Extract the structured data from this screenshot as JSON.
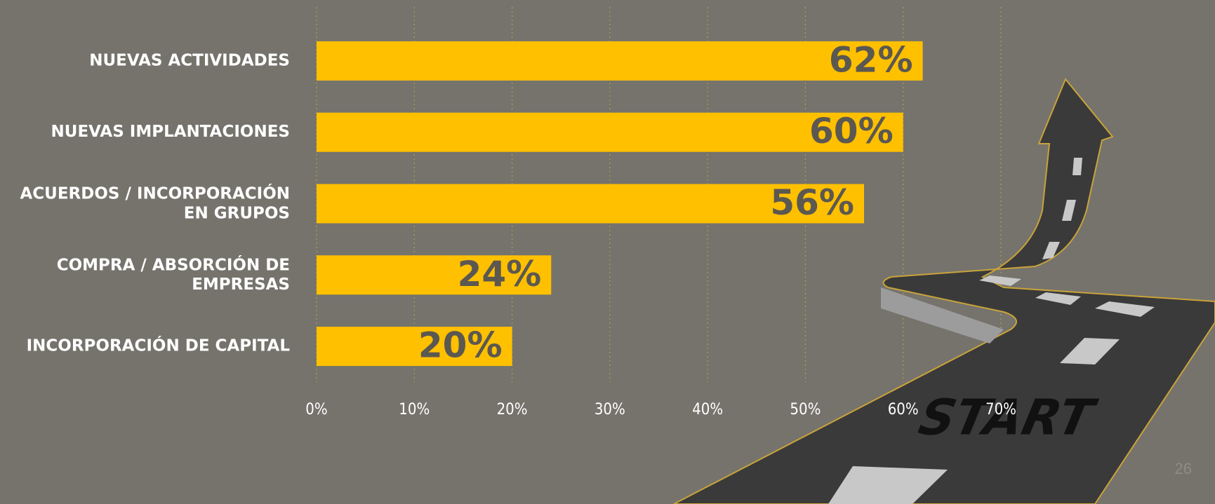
{
  "chart_data": {
    "type": "bar",
    "orientation": "horizontal",
    "categories": [
      "NUEVAS ACTIVIDADES",
      "NUEVAS IMPLANTACIONES",
      "ACUERDOS / INCORPORACIÓN\nEN GRUPOS",
      "COMPRA / ABSORCIÓN DE\nEMPRESAS",
      "INCORPORACIÓN DE CAPITAL"
    ],
    "values": [
      62,
      60,
      56,
      24,
      20
    ],
    "value_labels": [
      "62%",
      "60%",
      "56%",
      "24%",
      "20%"
    ],
    "color": "#ffc000",
    "xlim": [
      0,
      70
    ],
    "xticks": [
      {
        "value": 0,
        "label": "0%"
      },
      {
        "value": 10,
        "label": "10%"
      },
      {
        "value": 20,
        "label": "20%"
      },
      {
        "value": 30,
        "label": "30%"
      },
      {
        "value": 40,
        "label": "40%"
      },
      {
        "value": 50,
        "label": "50%"
      },
      {
        "value": 60,
        "label": "60%"
      },
      {
        "value": 70,
        "label": "70%"
      }
    ],
    "grid": true
  },
  "illustration_text": "START",
  "page_number": "26"
}
